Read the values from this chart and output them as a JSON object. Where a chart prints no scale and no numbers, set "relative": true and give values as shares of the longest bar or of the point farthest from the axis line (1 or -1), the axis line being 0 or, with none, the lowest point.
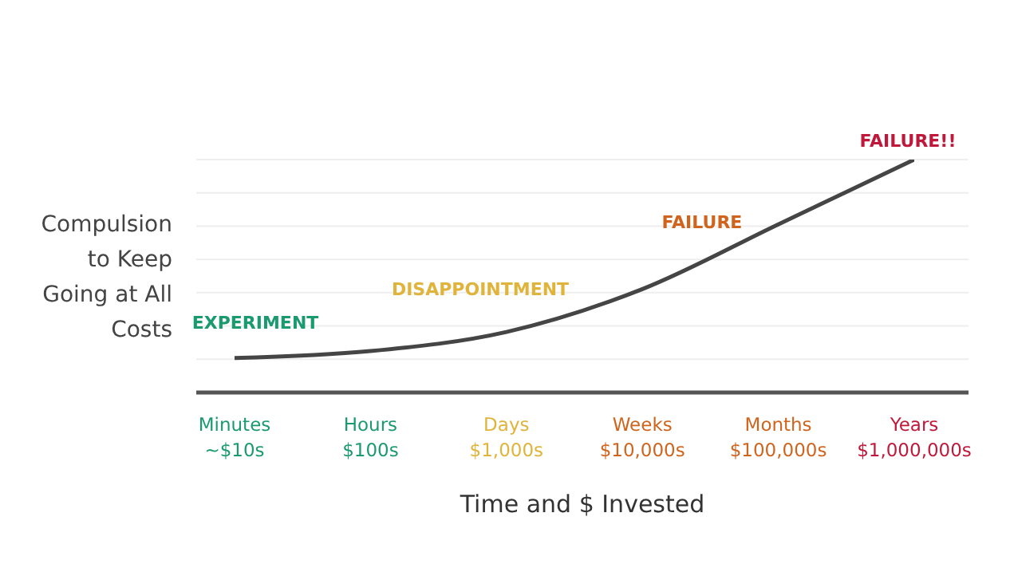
{
  "chart_data": {
    "type": "line",
    "relative": true,
    "grid": true,
    "marker": "none",
    "xlabel": "Time and $ Invested",
    "ylabel": "Compulsion to Keep Going at All Costs",
    "categories": [
      "Minutes\n~$10s",
      "Hours\n$100s",
      "Days\n$1,000s",
      "Weeks\n$10,000s",
      "Months\n$100,000s",
      "Years\n$1,000,000s"
    ],
    "series": [
      {
        "color": "#454545",
        "values": [
          0.148,
          0.178,
          0.26,
          0.444,
          0.722,
          1
        ]
      }
    ],
    "annotations": [
      "EXPERIMENT",
      "DISAPPOINTMENT",
      "FAILURE",
      "FAILURE!!"
    ]
  }
}
